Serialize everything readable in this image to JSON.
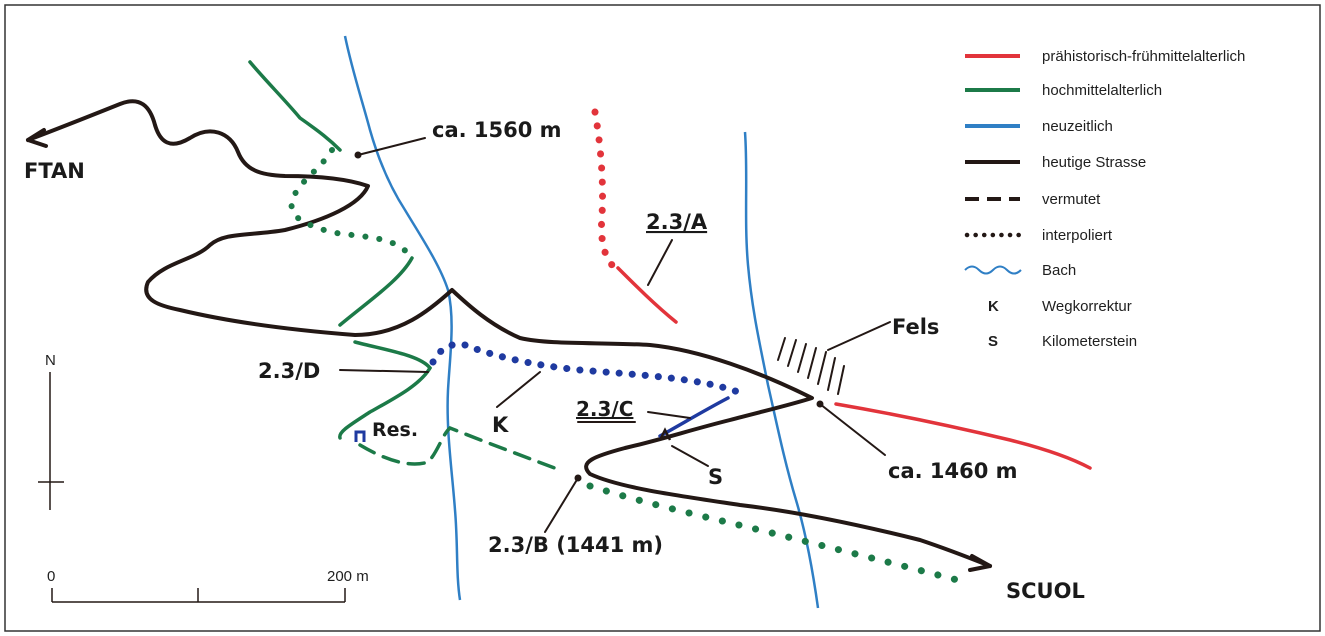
{
  "map": {
    "places": {
      "ftan": "FTAN",
      "scuol": "SCUOL"
    },
    "labels": {
      "elev_1560": "ca. 1560 m",
      "elev_1460": "ca. 1460 m",
      "site_a": "2.3/A",
      "site_b": "2.3/B (1441 m)",
      "site_c": "2.3/C",
      "site_d": "2.3/D",
      "res": "Res.",
      "k": "K",
      "s": "S",
      "fels": "Fels"
    },
    "north": "N",
    "scale": {
      "start": "0",
      "end": "200 m"
    },
    "colors": {
      "red": "#e2343b",
      "green": "#1c7a48",
      "blue": "#2f7fc5",
      "black": "#231815",
      "darkblue": "#1f3aa0"
    }
  },
  "legend": {
    "items": [
      {
        "label": "prähistorisch-frühmittelalterlich",
        "symbol": "red-line"
      },
      {
        "label": "hochmittelalterlich",
        "symbol": "green-line"
      },
      {
        "label": "neuzeitlich",
        "symbol": "blue-line"
      },
      {
        "label": "heutige Strasse",
        "symbol": "black-line"
      },
      {
        "label": "vermutet",
        "symbol": "dashed-line"
      },
      {
        "label": "interpoliert",
        "symbol": "dotted-line"
      },
      {
        "label": "Bach",
        "symbol": "wavy-line"
      },
      {
        "label": "Wegkorrektur",
        "key": "K"
      },
      {
        "label": "Kilometerstein",
        "key": "S"
      }
    ]
  }
}
